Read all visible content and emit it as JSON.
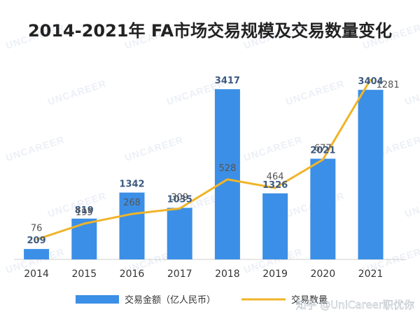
{
  "chart_data": {
    "type": "bar",
    "title": "2014-2021年 FA市场交易规模及交易数量变化",
    "categories": [
      "2014",
      "2015",
      "2016",
      "2017",
      "2018",
      "2019",
      "2020",
      "2021"
    ],
    "series": [
      {
        "name": "交易金额（亿人民币）",
        "type": "bar",
        "values": [
          209,
          819,
          1342,
          1035,
          3417,
          1326,
          2021,
          3404
        ],
        "color": "#3b8fe6"
      },
      {
        "name": "交易数量",
        "type": "line",
        "values": [
          76,
          195,
          268,
          309,
          528,
          464,
          677,
          1281
        ],
        "color": "#f0b429"
      }
    ],
    "bar_label_color": "#3c5a80",
    "line_label_color": "#555555",
    "legend_position": "bottom",
    "grid": false
  },
  "watermark": {
    "text": "UNCAREER",
    "caption": "知乎 @UniCareer职优你"
  }
}
